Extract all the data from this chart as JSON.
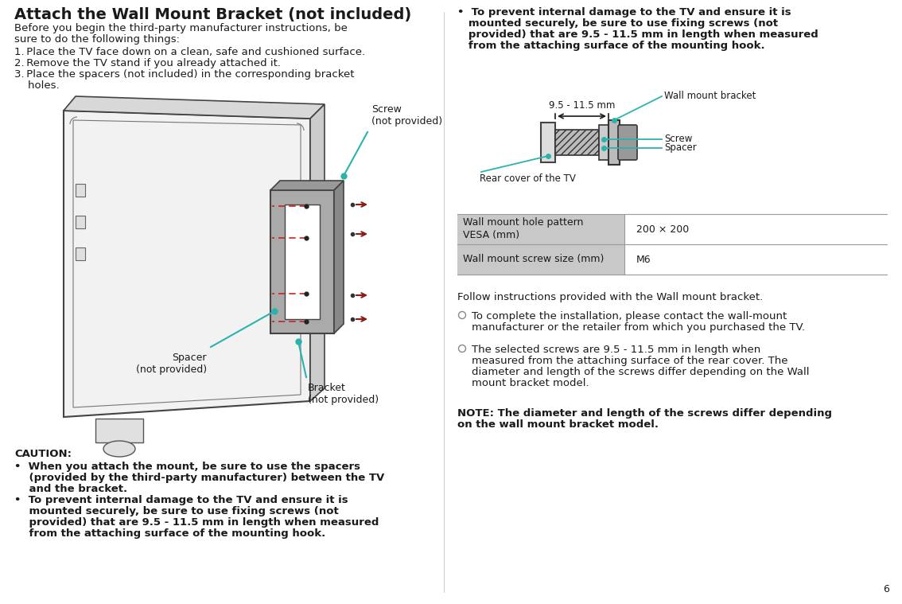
{
  "title": "Attach the Wall Mount Bracket (not included)",
  "bg_color": "#ffffff",
  "text_color": "#1a1a1a",
  "teal_color": "#2ab3ac",
  "dark_red": "#8B1a1a",
  "gray_light": "#e8e8e8",
  "gray_med": "#bbbbbb",
  "gray_dark": "#888888",
  "table_header_bg": "#c8c8c8",
  "page_number": "6",
  "title_fontsize": 14,
  "body_fontsize": 9.5,
  "small_fontsize": 9,
  "left": {
    "intro_line1": "Before you begin the third-party manufacturer instructions, be",
    "intro_line2": "sure to do the following things:",
    "step1": "1. Place the TV face down on a clean, safe and cushioned surface.",
    "step2": "2. Remove the TV stand if you already attached it.",
    "step3_l1": "3. Place the spacers (not included) in the corresponding bracket",
    "step3_l2": "    holes.",
    "screw_label": "Screw\n(not provided)",
    "spacer_label": "Spacer\n(not provided)",
    "bracket_label": "Bracket\n(not provided)",
    "caution_title": "CAUTION:",
    "caution1_l1": "•  When you attach the mount, be sure to use the spacers",
    "caution1_l2": "    (provided by the third-party manufacturer) between the TV",
    "caution1_l3": "    and the bracket.",
    "caution2_l1": "•  To prevent internal damage to the TV and ensure it is",
    "caution2_l2": "    mounted securely, be sure to use fixing screws (not",
    "caution2_l3": "    provided) that are 9.5 - 11.5 mm in length when measured",
    "caution2_l4": "    from the attaching surface of the mounting hook."
  },
  "right": {
    "bullet_l1": "•  To prevent internal damage to the TV and ensure it is",
    "bullet_l2": "   mounted securely, be sure to use fixing screws (not",
    "bullet_l3": "   provided) that are 9.5 - 11.5 mm in length when measured",
    "bullet_l4": "   from the attaching surface of the mounting hook.",
    "dim_label": "9.5 - 11.5 mm",
    "label_wmb": "Wall mount bracket",
    "label_screw": "Screw",
    "label_spacer": "Spacer",
    "label_rear": "Rear cover of the TV",
    "table_row1_l": "Wall mount hole pattern\nVESA (mm)",
    "table_row1_r": "200 × 200",
    "table_row2_l": "Wall mount screw size (mm)",
    "table_row2_r": "M6",
    "follow": "Follow instructions provided with the Wall mount bracket.",
    "b1_l1": "To complete the installation, please contact the wall-mount",
    "b1_l2": "manufacturer or the retailer from which you purchased the TV.",
    "b2_l1": "The selected screws are 9.5 - 11.5 mm in length when",
    "b2_l2": "measured from the attaching surface of the rear cover. The",
    "b2_l3": "diameter and length of the screws differ depending on the Wall",
    "b2_l4": "mount bracket model.",
    "note_l1": "NOTE: The diameter and length of the screws differ depending",
    "note_l2": "on the wall mount bracket model."
  }
}
